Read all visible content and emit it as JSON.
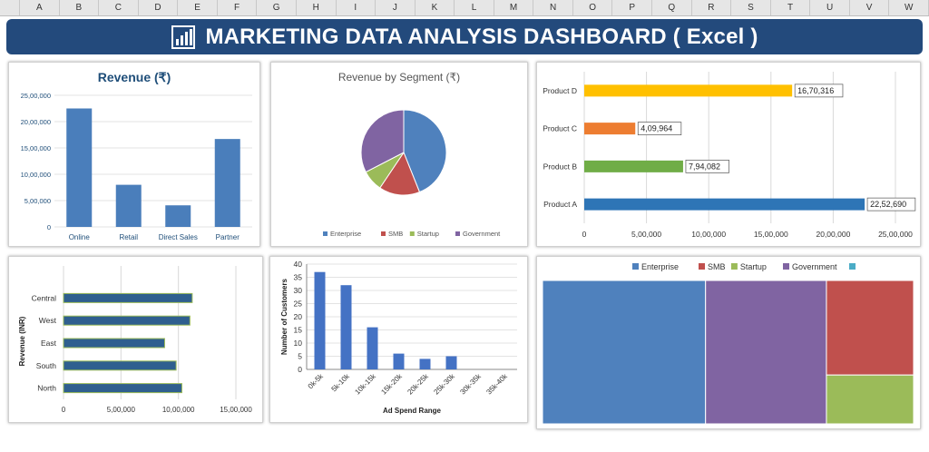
{
  "sheet": {
    "columns": [
      "A",
      "B",
      "C",
      "D",
      "E",
      "F",
      "G",
      "H",
      "I",
      "J",
      "K",
      "L",
      "M",
      "N",
      "O",
      "P",
      "Q",
      "R",
      "S",
      "T",
      "U",
      "V",
      "W"
    ]
  },
  "banner": {
    "title": "MARKETING DATA ANALYSIS DASHBOARD ( Excel )",
    "icon": "chart-icon",
    "color": "#234a7c"
  },
  "chart_data": [
    {
      "id": "revenue",
      "type": "bar",
      "title": "Revenue (₹)",
      "categories": [
        "Online",
        "Retail",
        "Direct Sales",
        "Partner"
      ],
      "values": [
        2250000,
        800000,
        410000,
        1670000
      ],
      "yticks": [
        "0",
        "5,00,000",
        "10,00,000",
        "15,00,000",
        "20,00,000",
        "25,00,000"
      ],
      "ylim": [
        0,
        2500000
      ],
      "color": "#4a7ebb"
    },
    {
      "id": "segment",
      "type": "pie",
      "title": "Revenue by Segment (₹)",
      "labels": [
        "Enterprise",
        "SMB",
        "Startup",
        "Government"
      ],
      "values": [
        2252690,
        794082,
        409964,
        1670316
      ],
      "colors": [
        "#4f81bd",
        "#c0504d",
        "#9bbb59",
        "#8064a2"
      ],
      "legend": "bottom"
    },
    {
      "id": "products",
      "type": "bar",
      "orientation": "horizontal",
      "categories": [
        "Product D",
        "Product C",
        "Product B",
        "Product A"
      ],
      "values": [
        1670316,
        409964,
        794082,
        2252690
      ],
      "data_labels": [
        "16,70,316",
        "4,09,964",
        "7,94,082",
        "22,52,690"
      ],
      "colors": [
        "#ffc000",
        "#ed7d31",
        "#70ad47",
        "#2e75b6"
      ],
      "xticks": [
        "0",
        "5,00,000",
        "10,00,000",
        "15,00,000",
        "20,00,000",
        "25,00,000"
      ],
      "xlim": [
        0,
        2500000
      ]
    },
    {
      "id": "regions",
      "type": "bar",
      "orientation": "horizontal",
      "ylabel": "Revenue (INR)",
      "categories": [
        "Central",
        "West",
        "East",
        "South",
        "North"
      ],
      "values": [
        1120000,
        1100000,
        880000,
        980000,
        1030000
      ],
      "xticks": [
        "0",
        "5,00,000",
        "10,00,000",
        "15,00,000"
      ],
      "xlim": [
        0,
        1500000
      ],
      "color": "#2f5f8f"
    },
    {
      "id": "adspend",
      "type": "bar",
      "xlabel": "Ad Spend Range",
      "ylabel": "Number of Customers",
      "categories": [
        "0k-5k",
        "5k-10k",
        "10k-15k",
        "15k-20k",
        "20k-25k",
        "25k-30k",
        "30k-35k",
        "35k-40k"
      ],
      "values": [
        37,
        32,
        16,
        6,
        4,
        5,
        0,
        0
      ],
      "yticks": [
        "0",
        "5",
        "10",
        "15",
        "20",
        "25",
        "30",
        "35",
        "40"
      ],
      "ylim": [
        0,
        40
      ],
      "color": "#4472c4"
    },
    {
      "id": "treemap",
      "type": "treemap",
      "labels": [
        "Enterprise",
        "SMB",
        "Startup",
        "Government",
        ""
      ],
      "values": [
        2252690,
        794082,
        409964,
        1670316,
        0
      ],
      "colors": [
        "#4f81bd",
        "#c0504d",
        "#9bbb59",
        "#8064a2",
        "#4bacc6"
      ],
      "legend": "top"
    }
  ]
}
